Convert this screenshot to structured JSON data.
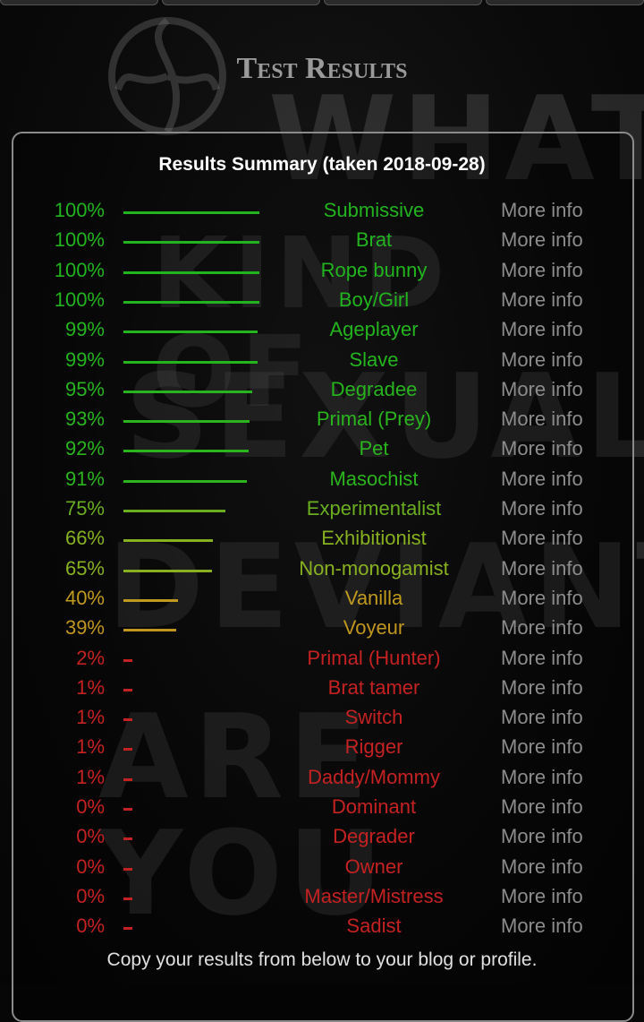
{
  "page": {
    "title": "Test Results"
  },
  "background": {
    "watermark_text": [
      "WHAT",
      "KIND OF",
      "SEXUAL",
      "DEVIANT",
      "ARE YOU"
    ]
  },
  "summary": {
    "heading": "Results Summary (taken 2018-09-28)"
  },
  "more_info_label": "More info",
  "results": [
    {
      "percent": 100,
      "label": "100%",
      "name": "Submissive",
      "color": "#22b41e"
    },
    {
      "percent": 100,
      "label": "100%",
      "name": "Brat",
      "color": "#22b41e"
    },
    {
      "percent": 100,
      "label": "100%",
      "name": "Rope bunny",
      "color": "#22b41e"
    },
    {
      "percent": 100,
      "label": "100%",
      "name": "Boy/Girl",
      "color": "#22b41e"
    },
    {
      "percent": 99,
      "label": "99%",
      "name": "Ageplayer",
      "color": "#24b41e"
    },
    {
      "percent": 99,
      "label": "99%",
      "name": "Slave",
      "color": "#24b41e"
    },
    {
      "percent": 95,
      "label": "95%",
      "name": "Degradee",
      "color": "#28b41e"
    },
    {
      "percent": 93,
      "label": "93%",
      "name": "Primal (Prey)",
      "color": "#2ab41e"
    },
    {
      "percent": 92,
      "label": "92%",
      "name": "Pet",
      "color": "#2ab41e"
    },
    {
      "percent": 91,
      "label": "91%",
      "name": "Masochist",
      "color": "#2cb41e"
    },
    {
      "percent": 75,
      "label": "75%",
      "name": "Experimentalist",
      "color": "#6aae20"
    },
    {
      "percent": 66,
      "label": "66%",
      "name": "Exhibitionist",
      "color": "#86b020"
    },
    {
      "percent": 65,
      "label": "65%",
      "name": "Non-monogamist",
      "color": "#88b020"
    },
    {
      "percent": 40,
      "label": "40%",
      "name": "Vanilla",
      "color": "#c09a1e"
    },
    {
      "percent": 39,
      "label": "39%",
      "name": "Voyeur",
      "color": "#c0961e"
    },
    {
      "percent": 2,
      "label": "2%",
      "name": "Primal (Hunter)",
      "color": "#c42222"
    },
    {
      "percent": 1,
      "label": "1%",
      "name": "Brat tamer",
      "color": "#c42222"
    },
    {
      "percent": 1,
      "label": "1%",
      "name": "Switch",
      "color": "#c42222"
    },
    {
      "percent": 1,
      "label": "1%",
      "name": "Rigger",
      "color": "#c42222"
    },
    {
      "percent": 1,
      "label": "1%",
      "name": "Daddy/Mommy",
      "color": "#c42222"
    },
    {
      "percent": 0,
      "label": "0%",
      "name": "Dominant",
      "color": "#c42222"
    },
    {
      "percent": 0,
      "label": "0%",
      "name": "Degrader",
      "color": "#c42222"
    },
    {
      "percent": 0,
      "label": "0%",
      "name": "Owner",
      "color": "#c42222"
    },
    {
      "percent": 0,
      "label": "0%",
      "name": "Master/Mistress",
      "color": "#c42222"
    },
    {
      "percent": 0,
      "label": "0%",
      "name": "Sadist",
      "color": "#c42222"
    }
  ],
  "footer": {
    "text": "Copy your results from below to your blog or profile."
  }
}
